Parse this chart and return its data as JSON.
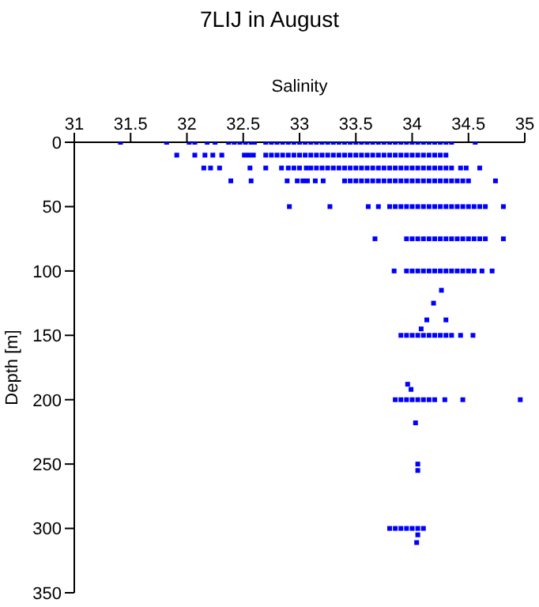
{
  "chart_data": {
    "type": "scatter",
    "title": "7LIJ in August",
    "xlabel": "Salinity",
    "ylabel": "Depth [m]",
    "xlim": [
      31,
      35
    ],
    "xticks": [
      31,
      31.5,
      32,
      32.5,
      33,
      33.5,
      34,
      34.5,
      35
    ],
    "ylim": [
      350,
      0
    ],
    "yticks": [
      0,
      50,
      100,
      150,
      200,
      250,
      300,
      350
    ],
    "marker": "square",
    "series": [
      {
        "color": "#0000ff",
        "x": [
          31.41,
          31.82,
          32.02,
          32.07,
          32.18,
          32.25,
          32.37,
          32.42,
          32.47,
          32.52,
          32.57,
          32.6,
          32.7,
          32.75,
          32.8,
          32.85,
          32.9,
          32.95,
          33,
          33.05,
          33.1,
          33.15,
          33.2,
          33.25,
          33.3,
          33.35,
          33.4,
          33.45,
          33.5,
          33.55,
          33.6,
          33.65,
          33.7,
          33.75,
          33.8,
          33.85,
          33.9,
          33.95,
          34,
          34.05,
          34.1,
          34.15,
          34.2,
          34.25,
          34.3,
          34.35,
          34.56
        ],
        "values": [
          0,
          0,
          0,
          0,
          0,
          0,
          0,
          0,
          0,
          0,
          0,
          0,
          0,
          0,
          0,
          0,
          0,
          0,
          0,
          0,
          0,
          0,
          0,
          0,
          0,
          0,
          0,
          0,
          0,
          0,
          0,
          0,
          0,
          0,
          0,
          0,
          0,
          0,
          0,
          0,
          0,
          0,
          0,
          0,
          0,
          0,
          0
        ]
      },
      {
        "color": "#0000ff",
        "x": [
          31.91,
          32.07,
          32.16,
          32.23,
          32.31,
          32.51,
          32.55,
          32.59,
          32.7,
          32.75,
          32.8,
          32.85,
          32.9,
          32.95,
          33,
          33.05,
          33.1,
          33.15,
          33.2,
          33.25,
          33.3,
          33.35,
          33.4,
          33.45,
          33.5,
          33.55,
          33.6,
          33.65,
          33.7,
          33.75,
          33.8,
          33.85,
          33.9,
          33.95,
          34,
          34.05,
          34.1,
          34.15,
          34.2,
          34.25,
          34.3
        ],
        "values": [
          10,
          10,
          10,
          10,
          10,
          10,
          10,
          10,
          10,
          10,
          10,
          10,
          10,
          10,
          10,
          10,
          10,
          10,
          10,
          10,
          10,
          10,
          10,
          10,
          10,
          10,
          10,
          10,
          10,
          10,
          10,
          10,
          10,
          10,
          10,
          10,
          10,
          10,
          10,
          10,
          10
        ]
      },
      {
        "color": "#0000ff",
        "x": [
          32.15,
          32.21,
          32.29,
          32.56,
          32.7,
          32.84,
          32.9,
          32.95,
          33,
          33.06,
          33.1,
          33.15,
          33.2,
          33.25,
          33.3,
          33.35,
          33.4,
          33.45,
          33.5,
          33.55,
          33.6,
          33.65,
          33.7,
          33.75,
          33.8,
          33.85,
          33.9,
          33.95,
          34,
          34.05,
          34.1,
          34.15,
          34.2,
          34.25,
          34.3,
          34.35,
          34.43,
          34.48,
          34.6
        ],
        "values": [
          20,
          20,
          20,
          20,
          20,
          20,
          20,
          20,
          20,
          20,
          20,
          20,
          20,
          20,
          20,
          20,
          20,
          20,
          20,
          20,
          20,
          20,
          20,
          20,
          20,
          20,
          20,
          20,
          20,
          20,
          20,
          20,
          20,
          20,
          20,
          20,
          20,
          20,
          20
        ]
      },
      {
        "color": "#0000ff",
        "x": [
          32.39,
          32.57,
          32.89,
          32.98,
          33.03,
          33.07,
          33.14,
          33.21,
          33.4,
          33.45,
          33.5,
          33.55,
          33.6,
          33.65,
          33.7,
          33.75,
          33.8,
          33.85,
          33.9,
          33.95,
          34,
          34.05,
          34.1,
          34.15,
          34.2,
          34.25,
          34.3,
          34.35,
          34.4,
          34.45,
          34.5,
          34.74
        ],
        "values": [
          30,
          30,
          30,
          30,
          30,
          30,
          30,
          30,
          30,
          30,
          30,
          30,
          30,
          30,
          30,
          30,
          30,
          30,
          30,
          30,
          30,
          30,
          30,
          30,
          30,
          30,
          30,
          30,
          30,
          30,
          30,
          30
        ]
      },
      {
        "color": "#0000ff",
        "x": [
          32.91,
          33.27,
          33.61,
          33.7,
          33.8,
          33.85,
          33.9,
          33.95,
          34,
          34.05,
          34.1,
          34.15,
          34.2,
          34.25,
          34.3,
          34.35,
          34.4,
          34.45,
          34.5,
          34.55,
          34.6,
          34.65,
          34.81
        ],
        "values": [
          50,
          50,
          50,
          50,
          50,
          50,
          50,
          50,
          50,
          50,
          50,
          50,
          50,
          50,
          50,
          50,
          50,
          50,
          50,
          50,
          50,
          50,
          50
        ]
      },
      {
        "color": "#0000ff",
        "x": [
          33.67,
          33.95,
          34,
          34.05,
          34.1,
          34.15,
          34.2,
          34.25,
          34.3,
          34.35,
          34.4,
          34.45,
          34.5,
          34.55,
          34.6,
          34.65,
          34.81
        ],
        "values": [
          75,
          75,
          75,
          75,
          75,
          75,
          75,
          75,
          75,
          75,
          75,
          75,
          75,
          75,
          75,
          75,
          75
        ]
      },
      {
        "color": "#0000ff",
        "x": [
          33.84,
          33.95,
          34,
          34.05,
          34.1,
          34.15,
          34.2,
          34.25,
          34.3,
          34.35,
          34.4,
          34.45,
          34.5,
          34.55,
          34.62,
          34.71
        ],
        "values": [
          100,
          100,
          100,
          100,
          100,
          100,
          100,
          100,
          100,
          100,
          100,
          100,
          100,
          100,
          100,
          100
        ]
      },
      {
        "color": "#0000ff",
        "x": [
          33.9,
          33.95,
          34,
          34.05,
          34.1,
          34.15,
          34.2,
          34.25,
          34.3,
          34.35,
          34.43,
          34.54
        ],
        "values": [
          150,
          150,
          150,
          150,
          150,
          150,
          150,
          150,
          150,
          150,
          150,
          150
        ]
      },
      {
        "color": "#0000ff",
        "x": [
          33.85,
          33.9,
          33.95,
          34,
          34.05,
          34.1,
          34.15,
          34.2,
          34.29,
          34.45,
          34.96
        ],
        "values": [
          200,
          200,
          200,
          200,
          200,
          200,
          200,
          200,
          200,
          200,
          200
        ]
      },
      {
        "color": "#0000ff",
        "x": [
          33.8,
          33.85,
          33.9,
          33.95,
          34,
          34.05,
          34.1
        ],
        "values": [
          300,
          300,
          300,
          300,
          300,
          300,
          300
        ]
      },
      {
        "color": "#0000ff",
        "x": [
          34.26,
          34.19,
          34.13,
          34.3,
          34.08,
          33.96,
          33.99,
          34.03,
          34.05,
          34.05,
          34.05,
          34.04
        ],
        "values": [
          115,
          125,
          138,
          138,
          145,
          188,
          192,
          218,
          250,
          255,
          305,
          311
        ]
      }
    ]
  }
}
